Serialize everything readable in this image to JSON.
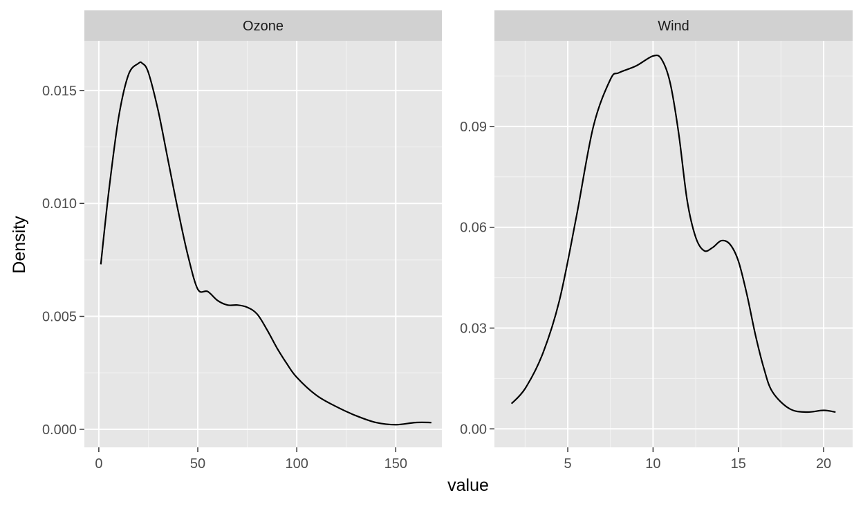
{
  "chart_data": {
    "type": "line",
    "xlabel": "value",
    "ylabel": "Density",
    "line_color": "#000000",
    "panel_background": "#e6e6e6",
    "strip_background": "#d1d1d1",
    "grid": true,
    "facets": [
      {
        "label": "Ozone",
        "xlim": [
          -7.3,
          173.3
        ],
        "ylim": [
          -0.0008,
          0.0172
        ],
        "x_ticks": [
          0,
          50,
          100,
          150
        ],
        "x_tick_labels": [
          "0",
          "50",
          "100",
          "150"
        ],
        "x_minor": [
          25,
          75,
          125
        ],
        "y_ticks": [
          0,
          0.005,
          0.01,
          0.015
        ],
        "y_tick_labels": [
          "0.000",
          "0.005",
          "0.010",
          "0.015"
        ],
        "y_minor": [
          0.0025,
          0.0075,
          0.0125
        ],
        "series": [
          {
            "x": [
              1,
              5,
              10,
              15,
              20,
              22,
              25,
              30,
              35,
              40,
              45,
              50,
              55,
              60,
              65,
              70,
              75,
              80,
              85,
              90,
              95,
              100,
              110,
              120,
              130,
              140,
              150,
              160,
              168
            ],
            "y": [
              0.0073,
              0.0105,
              0.0138,
              0.0157,
              0.0162,
              0.0162,
              0.0158,
              0.0141,
              0.0119,
              0.0097,
              0.0077,
              0.0062,
              0.0061,
              0.0057,
              0.0055,
              0.0055,
              0.0054,
              0.0051,
              0.0044,
              0.0036,
              0.0029,
              0.0023,
              0.0015,
              0.001,
              0.0006,
              0.0003,
              0.0002,
              0.0003,
              0.0003
            ]
          }
        ]
      },
      {
        "label": "Wind",
        "xlim": [
          0.7,
          21.7
        ],
        "ylim": [
          -0.0055,
          0.1155
        ],
        "x_ticks": [
          5,
          10,
          15,
          20
        ],
        "x_tick_labels": [
          "5",
          "10",
          "15",
          "20"
        ],
        "x_minor": [
          2.5,
          7.5,
          12.5,
          17.5
        ],
        "y_ticks": [
          0,
          0.03,
          0.06,
          0.09
        ],
        "y_tick_labels": [
          "0.00",
          "0.03",
          "0.06",
          "0.09"
        ],
        "y_minor": [
          0.015,
          0.045,
          0.075,
          0.105
        ],
        "series": [
          {
            "x": [
              1.7,
              2.5,
              3.5,
              4.5,
              5.5,
              6.5,
              7.5,
              8.0,
              9.0,
              10.0,
              10.5,
              11.0,
              11.5,
              12.0,
              12.5,
              13.0,
              13.5,
              14.0,
              14.5,
              15.0,
              15.5,
              16.0,
              16.5,
              17.0,
              18.0,
              19.0,
              20.0,
              20.7
            ],
            "y": [
              0.0075,
              0.012,
              0.022,
              0.038,
              0.063,
              0.09,
              0.104,
              0.106,
              0.108,
              0.111,
              0.11,
              0.103,
              0.088,
              0.068,
              0.057,
              0.053,
              0.054,
              0.056,
              0.055,
              0.05,
              0.04,
              0.028,
              0.018,
              0.011,
              0.006,
              0.005,
              0.0055,
              0.005
            ]
          }
        ]
      }
    ]
  }
}
